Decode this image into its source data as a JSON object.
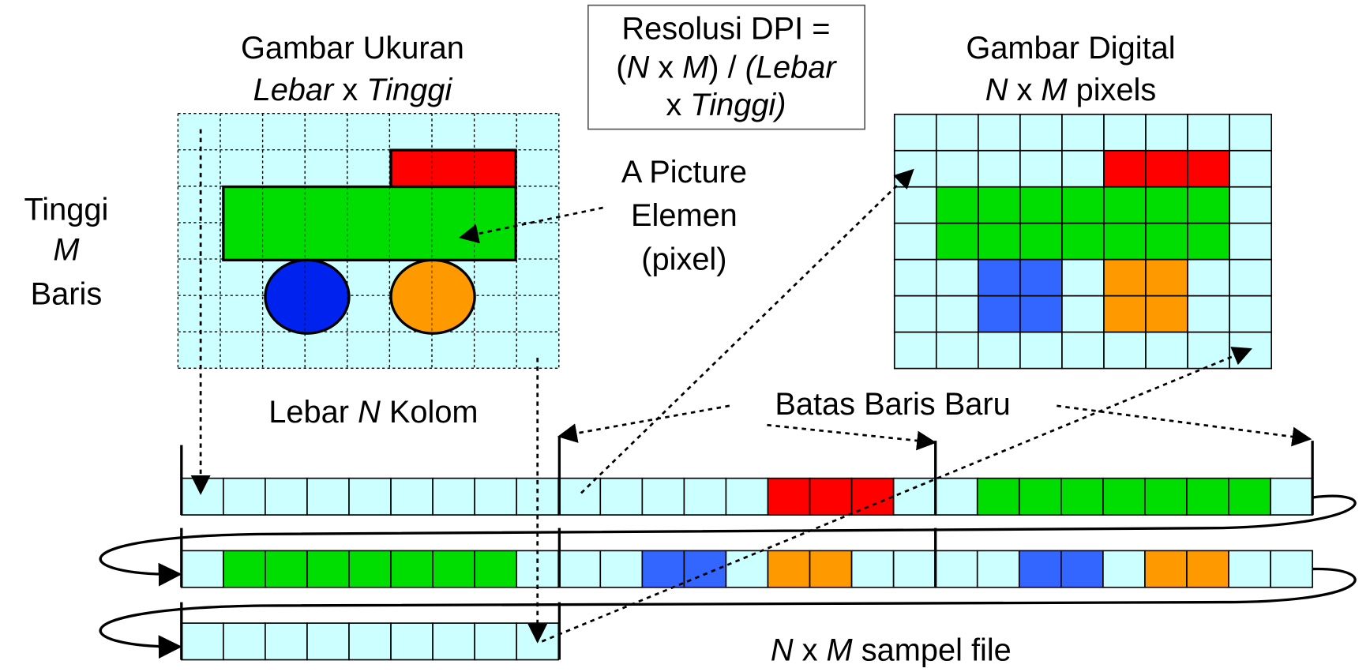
{
  "left_image": {
    "title": "Gambar Ukuran",
    "size": [
      "Lebar",
      " x ",
      "Tinggi"
    ],
    "columns_label": [
      "Lebar ",
      "N",
      " Kolom"
    ],
    "rows_label": [
      "Tinggi",
      "M",
      "Baris"
    ]
  },
  "dpi_box": {
    "line1": "Resolusi DPI =",
    "line2": [
      "(",
      "N",
      " x ",
      "M",
      ") / ",
      "(Lebar"
    ],
    "line3": [
      "x ",
      "Tinggi)"
    ]
  },
  "right_image": {
    "title": "Gambar Digital",
    "size": [
      "N",
      " x ",
      "M",
      " pixels"
    ]
  },
  "pixel_note": [
    "A Picture",
    "Elemen",
    "(pixel)"
  ],
  "row_boundary": "Batas Baris Baru",
  "file_label": [
    "N",
    " x ",
    "M",
    " sampel file"
  ]
}
